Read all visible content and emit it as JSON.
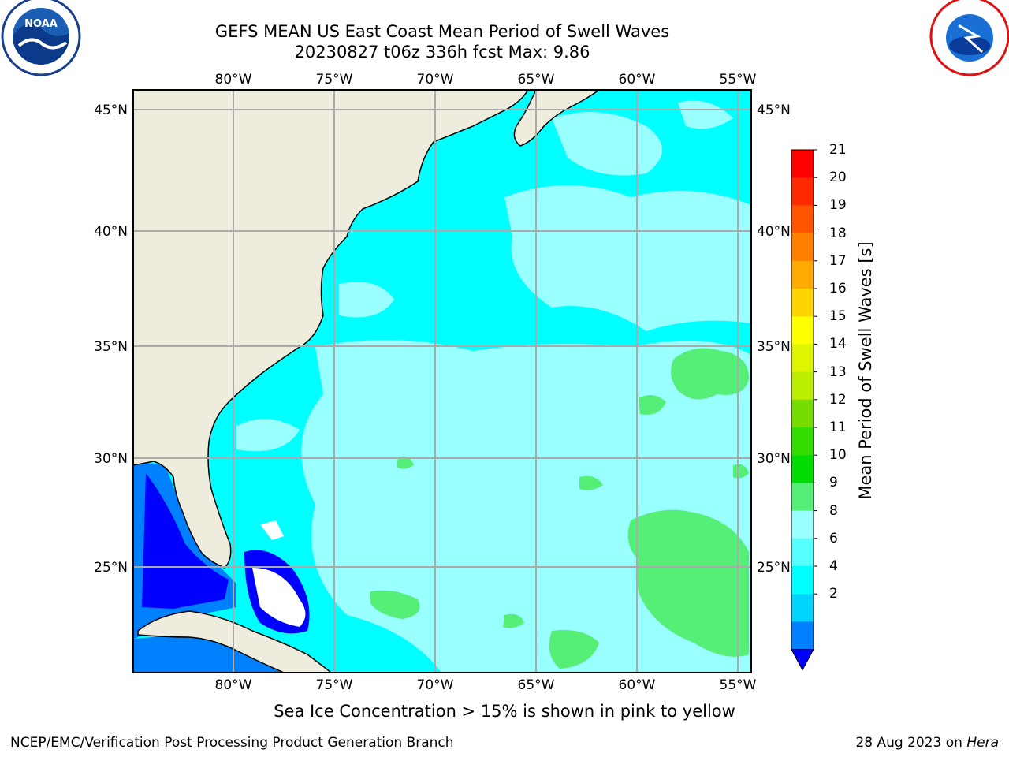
{
  "title": {
    "line1": "GEFS MEAN US East Coast Mean Period of Swell Waves",
    "line2": "20230827 t06z 336h fcst   Max: 9.86"
  },
  "map": {
    "lon_labels": [
      "80°W",
      "75°W",
      "70°W",
      "65°W",
      "60°W",
      "55°W"
    ],
    "lat_labels": [
      "45°N",
      "40°N",
      "35°N",
      "30°N",
      "25°N"
    ],
    "lon_range": [
      -85,
      -54.5
    ],
    "lat_range": [
      20.5,
      45.8
    ],
    "gridlines": true,
    "colors": {
      "land": "#eeeddd",
      "grid": "#aaaaaa",
      "coast": "#000000"
    }
  },
  "colorbar": {
    "title": "Mean Period of Swell Waves [s]",
    "levels": [
      "21",
      "20",
      "19",
      "18",
      "17",
      "16",
      "15",
      "14",
      "13",
      "12",
      "11",
      "10",
      "9",
      "8",
      "6",
      "4",
      "2"
    ],
    "colors": [
      "#ff0000",
      "#ff2a00",
      "#ff5500",
      "#ff8000",
      "#ffaa00",
      "#ffd500",
      "#ffff00",
      "#ddf500",
      "#bbee00",
      "#77dd00",
      "#33dd00",
      "#00dd00",
      "#55ee77",
      "#99ffff",
      "#55ffff",
      "#00ffff",
      "#00d5ff",
      "#0080ff"
    ],
    "under_color": "#0000ff",
    "extend": "min"
  },
  "caption": "Sea Ice Concentration > 15% is shown in pink to yellow",
  "footer": {
    "left": "NCEP/EMC/Verification Post Processing Product Generation Branch",
    "right_date": "28 Aug 2023 on ",
    "right_host": "Hera"
  },
  "logos": {
    "left": "noaa-logo",
    "right": "national-weather-service-logo"
  }
}
